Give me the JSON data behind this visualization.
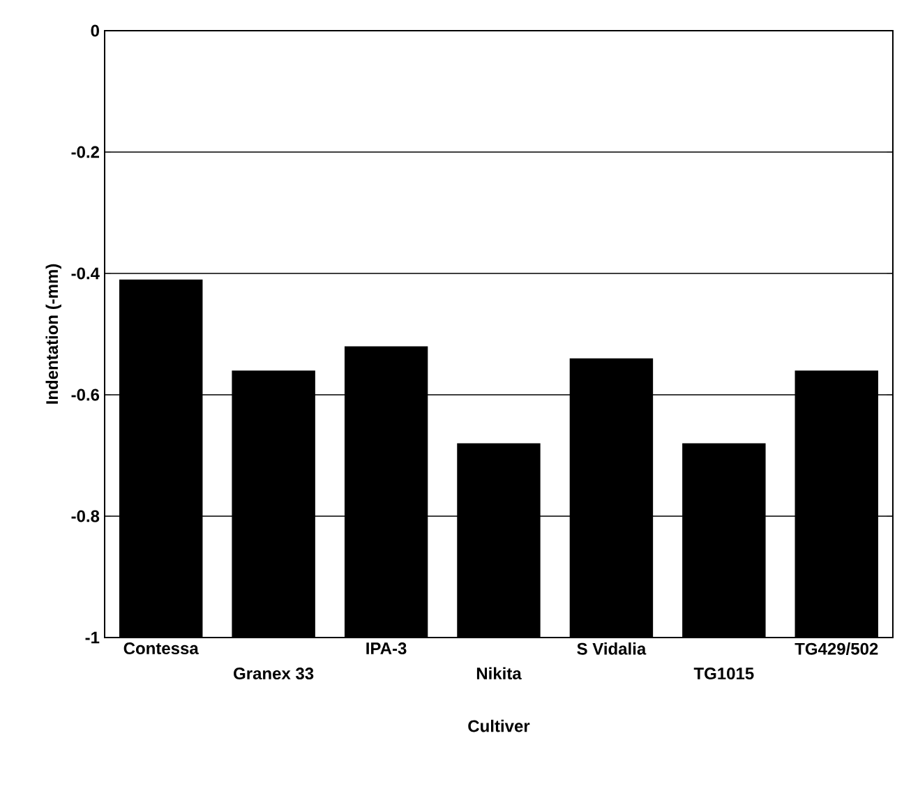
{
  "chart_data": {
    "type": "bar",
    "xlabel": "Cultiver",
    "ylabel": "Indentation (-mm)",
    "categories": [
      "Contessa",
      "Granex 33",
      "IPA-3",
      "Nikita",
      "S Vidalia",
      "TG1015",
      "TG429/502"
    ],
    "base": [
      -1,
      -1,
      -1,
      -1,
      -1,
      -1,
      -1
    ],
    "values": [
      0.59,
      0.44,
      0.48,
      0.32,
      0.46,
      0.32,
      0.44
    ],
    "color": "#000000",
    "ylim": [
      -1,
      0
    ],
    "yticks": [
      -1,
      -0.8,
      -0.6,
      -0.4,
      -0.2,
      0
    ],
    "grid": "y"
  }
}
